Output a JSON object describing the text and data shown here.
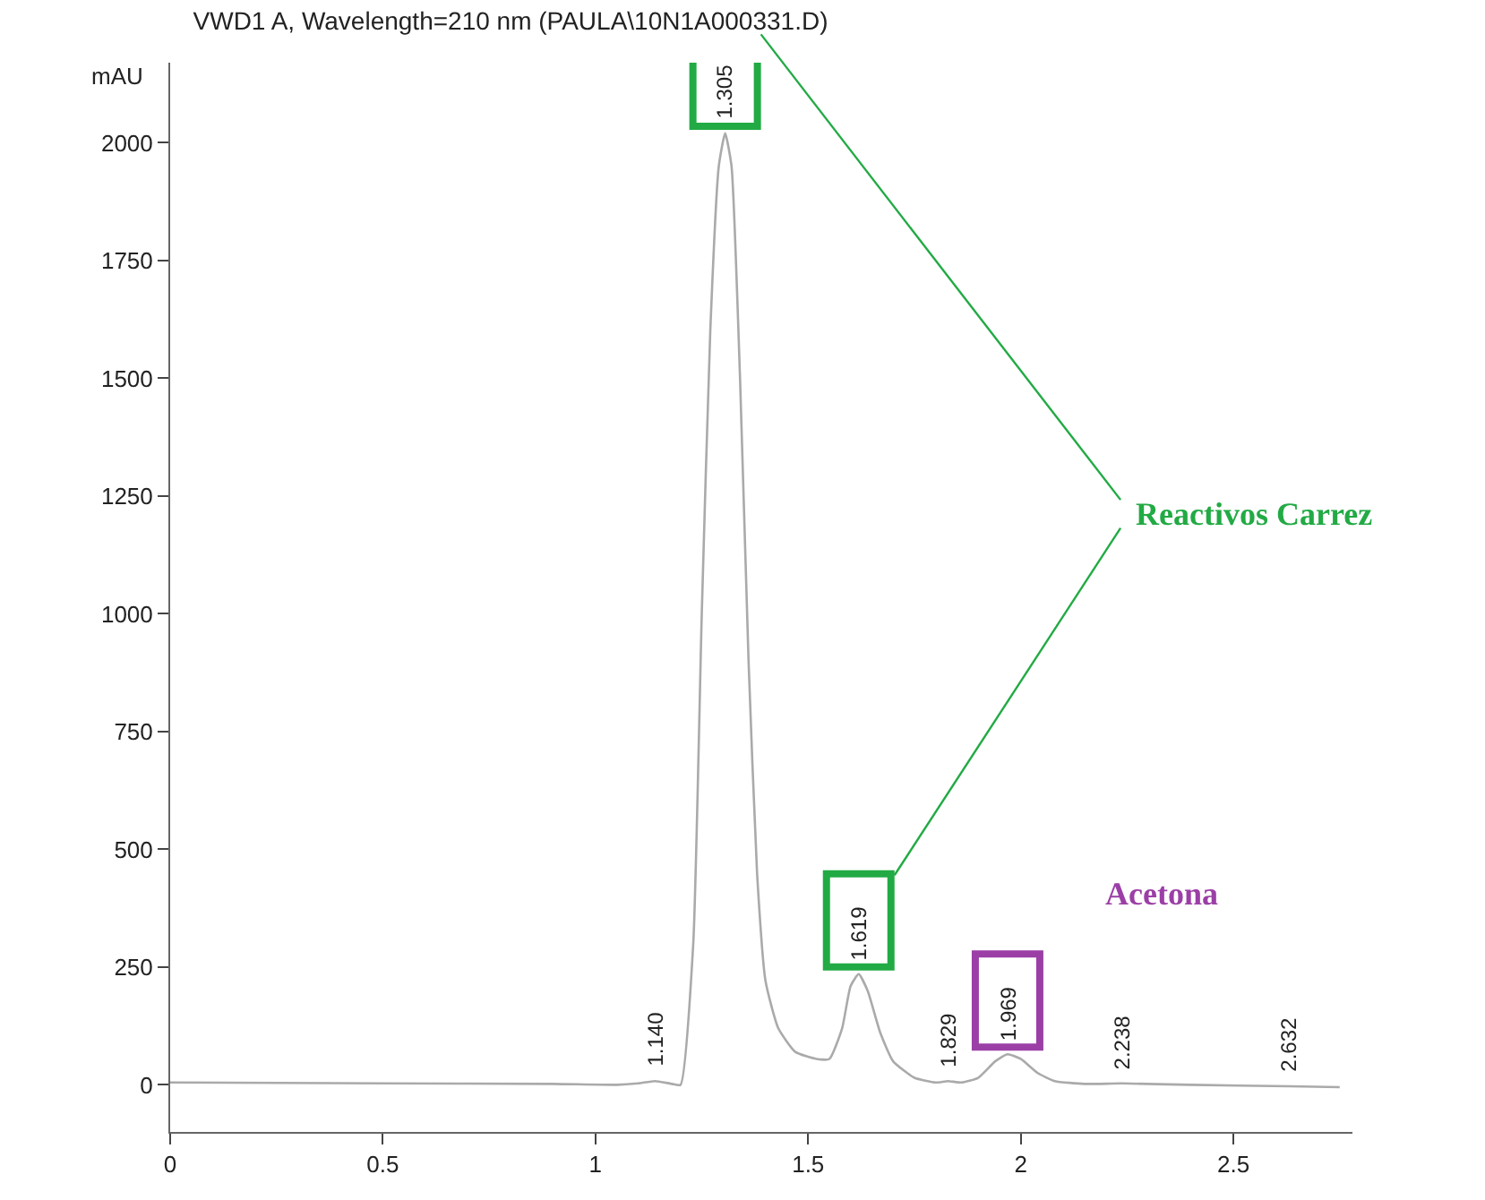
{
  "chart_data": {
    "type": "line",
    "title": "VWD1 A, Wavelength=210 nm (PAULA\\10N1A000331.D)",
    "ylabel": "mAU",
    "x": [
      0,
      0.5,
      0.9,
      1.05,
      1.1,
      1.14,
      1.18,
      1.2,
      1.23,
      1.25,
      1.27,
      1.29,
      1.305,
      1.32,
      1.34,
      1.36,
      1.38,
      1.4,
      1.43,
      1.47,
      1.52,
      1.55,
      1.58,
      1.6,
      1.619,
      1.64,
      1.67,
      1.7,
      1.75,
      1.8,
      1.829,
      1.86,
      1.9,
      1.94,
      1.969,
      2.0,
      2.04,
      2.08,
      2.15,
      2.238,
      2.4,
      2.632,
      2.75
    ],
    "series": [
      {
        "color": "#aaaaaa",
        "values": [
          5,
          3,
          2,
          0,
          3,
          8,
          2,
          0,
          300,
          1000,
          1600,
          1950,
          2020,
          1950,
          1500,
          900,
          450,
          220,
          120,
          70,
          55,
          55,
          120,
          210,
          235,
          200,
          110,
          50,
          15,
          5,
          8,
          5,
          15,
          50,
          65,
          55,
          25,
          8,
          2,
          3,
          0,
          -3,
          -5
        ]
      }
    ],
    "annotations": [
      {
        "text": "1.140",
        "x": 1.14,
        "y": 8
      },
      {
        "text": "1.305",
        "x": 1.305,
        "y": 2020
      },
      {
        "text": "1.619",
        "x": 1.619,
        "y": 235
      },
      {
        "text": "1.829",
        "x": 1.829,
        "y": 8
      },
      {
        "text": "1.969",
        "x": 1.969,
        "y": 65
      },
      {
        "text": "2.238",
        "x": 2.238,
        "y": 3
      },
      {
        "text": "2.632",
        "x": 2.632,
        "y": -3
      },
      "Reactivos Carrez",
      "Acetona"
    ],
    "xlim": [
      0,
      2.78
    ],
    "ylim": [
      -100,
      2170
    ],
    "xticks": [
      0,
      0.5,
      1,
      1.5,
      2,
      2.5
    ],
    "yticks": [
      0,
      250,
      500,
      750,
      1000,
      1250,
      1500,
      1750,
      2000
    ],
    "marker": "none",
    "line_style": "solid"
  }
}
